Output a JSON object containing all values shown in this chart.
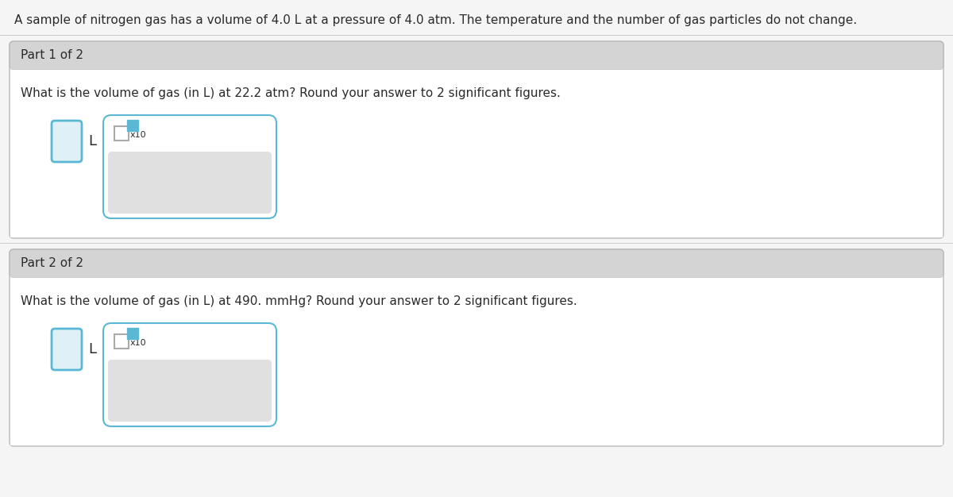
{
  "background_color": "#f5f5f5",
  "page_bg": "#f5f5f5",
  "header_text": "A sample of nitrogen gas has a volume of 4.0 L at a pressure of 4.0 atm. The temperature and the number of gas particles do not change.",
  "part1_label": "Part 1 of 2",
  "part1_question": "What is the volume of gas (in L) at 22.2 atm? Round your answer to 2 significant figures.",
  "part2_label": "Part 2 of 2",
  "part2_question": "What is the volume of gas (in L) at 490. mmHg? Round your answer to 2 significant figures.",
  "outer_bg": "#f0f0f0",
  "section_header_bg": "#d4d4d4",
  "content_bg": "#ffffff",
  "input_border_color": "#5bb8d4",
  "answer_box_bg": "#dff0f7",
  "button_area_bg": "#e0e0e0",
  "text_color": "#2a2a2a",
  "teal_color": "#5bb8d4",
  "gray_border": "#aaaaaa",
  "divider_color": "#cccccc",
  "outer_border_color": "#bbbbbb"
}
